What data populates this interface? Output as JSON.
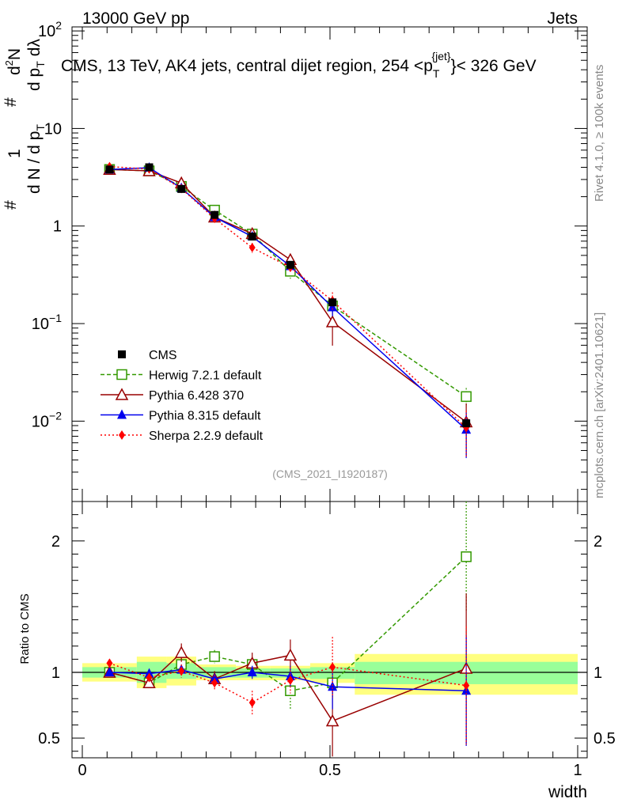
{
  "header": {
    "left": "13000 GeV pp",
    "right": "Jets"
  },
  "side_labels": {
    "rivet": "Rivet 4.1.0, ≥ 100k events",
    "mcplots": "mcplots.cern.ch [arXiv:2401.10621]"
  },
  "chart_data": {
    "type": "line",
    "title": "CMS, 13 TeV, AK4 jets, central dijet region, 254 <p_T^{jet}< 326 GeV",
    "title_parts": {
      "main": "CMS, 13 TeV, AK4 jets, central dijet region, 254 <p",
      "sub": "T",
      "sup": "{jet}",
      "tail": "}< 326 GeV"
    },
    "analysis_tag": "(CMS_2021_I1920187)",
    "xlabel": "width",
    "ylabel_parts": {
      "hash1": "#",
      "one": "1",
      "den": "d N / d p",
      "den_sub": "T",
      "hash2": "#",
      "num": "d",
      "num_sup": "2",
      "num_tail": "N",
      "den2": "d p",
      "den2_sub": "T",
      "den2_tail": "dλ"
    },
    "ratio_ylabel": "Ratio to CMS",
    "xlim": [
      0,
      1
    ],
    "ylim_log": [
      0.0015,
      110
    ],
    "ratio_ylim": [
      0.35,
      2.3
    ],
    "x_ticks": [
      {
        "v": 0,
        "label": "0"
      },
      {
        "v": 0.5,
        "label": "0.5"
      },
      {
        "v": 1,
        "label": "1"
      }
    ],
    "y_ticks": [
      {
        "v": 0.01,
        "base": "10",
        "exp": "−2"
      },
      {
        "v": 0.1,
        "base": "10",
        "exp": "−1"
      },
      {
        "v": 1,
        "base": "1",
        "exp": ""
      },
      {
        "v": 10,
        "base": "10",
        "exp": ""
      },
      {
        "v": 100,
        "base": "10",
        "exp": "2"
      }
    ],
    "ratio_ticks": [
      {
        "v": 0.5,
        "label": "0.5"
      },
      {
        "v": 1,
        "label": "1"
      },
      {
        "v": 2,
        "label": "2"
      }
    ],
    "x": [
      0.055,
      0.135,
      0.2,
      0.267,
      0.343,
      0.42,
      0.505,
      0.775
    ],
    "data": {
      "name": "CMS",
      "values": [
        3.8,
        4.0,
        2.4,
        1.3,
        0.78,
        0.4,
        0.165,
        0.0095
      ],
      "bands": [
        {
          "x0": 0.0,
          "x1": 0.11,
          "y1": [
            0.96,
            1.04
          ],
          "y2": [
            0.93,
            1.07
          ]
        },
        {
          "x0": 0.11,
          "x1": 0.17,
          "y1": [
            0.92,
            1.08
          ],
          "y2": [
            0.88,
            1.12
          ]
        },
        {
          "x0": 0.17,
          "x1": 0.23,
          "y1": [
            0.95,
            1.07
          ],
          "y2": [
            0.9,
            1.12
          ]
        },
        {
          "x0": 0.23,
          "x1": 0.31,
          "y1": [
            0.96,
            1.04
          ],
          "y2": [
            0.94,
            1.06
          ]
        },
        {
          "x0": 0.31,
          "x1": 0.38,
          "y1": [
            0.96,
            1.03
          ],
          "y2": [
            0.94,
            1.05
          ]
        },
        {
          "x0": 0.38,
          "x1": 0.46,
          "y1": [
            0.96,
            1.03
          ],
          "y2": [
            0.94,
            1.05
          ]
        },
        {
          "x0": 0.46,
          "x1": 0.55,
          "y1": [
            0.95,
            1.04
          ],
          "y2": [
            0.92,
            1.07
          ]
        },
        {
          "x0": 0.55,
          "x1": 1.0,
          "y1": [
            0.91,
            1.08
          ],
          "y2": [
            0.83,
            1.14
          ]
        }
      ]
    },
    "series": [
      {
        "name": "Herwig 7.2.1 default",
        "color": "#339900",
        "marker": "open-square",
        "dash": "5,3",
        "ratio": [
          1.0,
          0.92,
          1.06,
          1.12,
          1.06,
          0.86,
          0.92,
          1.88
        ],
        "err": [
          0.03,
          0.03,
          0.05,
          0.05,
          0.05,
          0.14,
          0.12,
          0.42
        ]
      },
      {
        "name": "Pythia 6.428 370",
        "color": "#990000",
        "marker": "open-triangle",
        "dash": "",
        "ratio": [
          1.0,
          0.92,
          1.15,
          0.95,
          1.07,
          1.13,
          0.63,
          1.03
        ],
        "err": [
          0.03,
          0.04,
          0.07,
          0.06,
          0.08,
          0.12,
          0.27,
          0.57
        ]
      },
      {
        "name": "Pythia 8.315 default",
        "color": "#0000ee",
        "marker": "filled-triangle",
        "dash": "",
        "ratio": [
          1.0,
          0.99,
          1.02,
          0.95,
          1.0,
          0.97,
          0.89,
          0.86
        ],
        "err": [
          0.03,
          0.03,
          0.04,
          0.04,
          0.05,
          0.08,
          0.17,
          0.42
        ]
      },
      {
        "name": "Sherpa 2.2.9 default",
        "color": "#ff0000",
        "marker": "filled-diamond",
        "dash": "2,3",
        "ratio": [
          1.07,
          0.96,
          1.01,
          0.92,
          0.77,
          0.94,
          1.04,
          0.9
        ],
        "err": [
          0.03,
          0.03,
          0.05,
          0.06,
          0.09,
          0.1,
          0.23,
          0.45
        ]
      }
    ]
  }
}
